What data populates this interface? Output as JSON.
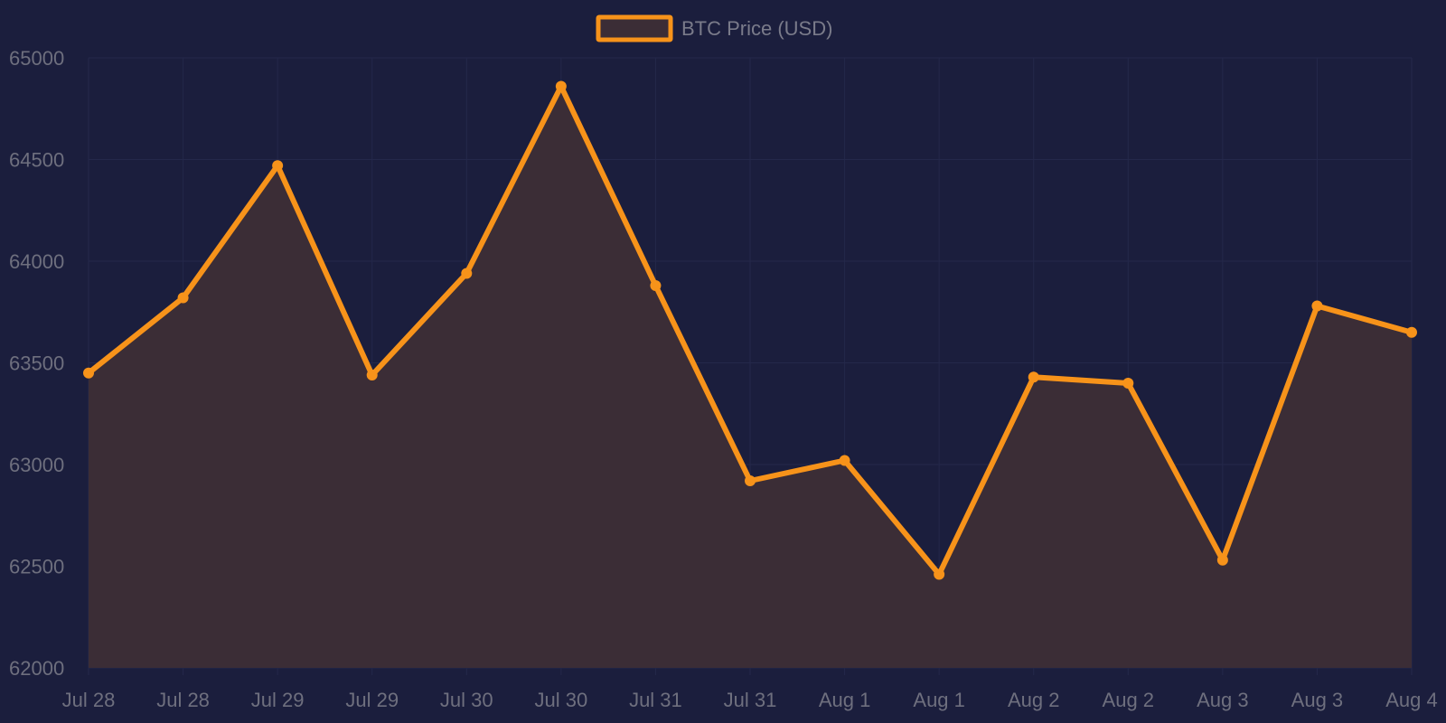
{
  "chart_data": {
    "type": "area",
    "title": "",
    "xlabel": "",
    "ylabel": "",
    "categories": [
      "Jul 28",
      "Jul 28",
      "Jul 29",
      "Jul 29",
      "Jul 30",
      "Jul 30",
      "Jul 31",
      "Jul 31",
      "Aug 1",
      "Aug 1",
      "Aug 2",
      "Aug 2",
      "Aug 3",
      "Aug 3",
      "Aug 4"
    ],
    "series": [
      {
        "name": "BTC Price (USD)",
        "values": [
          63450,
          63820,
          64470,
          63440,
          63940,
          64860,
          63880,
          62920,
          63020,
          62460,
          63430,
          63400,
          62530,
          63780,
          63650
        ]
      }
    ],
    "ylim": [
      62000,
      65000
    ],
    "yticks": [
      62000,
      62500,
      63000,
      63500,
      64000,
      64500,
      65000
    ],
    "grid": true,
    "legend_position": "top-center",
    "colors": {
      "background": "#1b1e3d",
      "line": "#f7931a",
      "fill": "#3b2d36",
      "grid": "#24284a",
      "text": "#6e6f7e"
    }
  }
}
